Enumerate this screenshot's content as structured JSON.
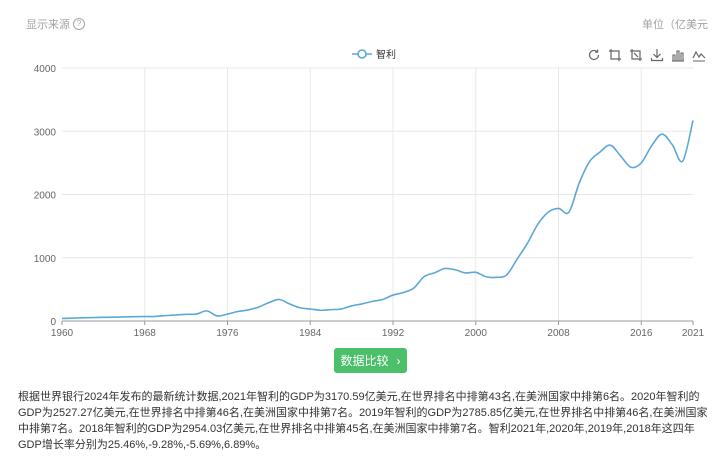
{
  "header": {
    "source_label": "显示来源",
    "help_icon": "question-circle-icon",
    "help_glyph": "?",
    "unit_label": "单位（亿美元"
  },
  "toolbar": {
    "icons": [
      "restore-icon",
      "zoom-icon",
      "zoom-reset-icon",
      "download-icon",
      "bar-chart-icon",
      "line-chart-icon"
    ]
  },
  "compare_button": {
    "label": "数据比较",
    "icon": "chevron-right-icon",
    "glyph": "›"
  },
  "description": {
    "text": "根据世界银行2024年发布的最新统计数据,2021年智利的GDP为3170.59亿美元,在世界排名中排第43名,在美洲国家中排第6名。2020年智利的GDP为2527.27亿美元,在世界排名中排第46名,在美洲国家中排第7名。2019年智利的GDP为2785.85亿美元,在世界排名中排第46名,在美洲国家中排第7名。2018年智利的GDP为2954.03亿美元,在世界排名中排第45名,在美洲国家中排第7名。智利2021年,2020年,2019年,2018年这四年GDP增长率分别为25.46%,-9.28%,-5.69%,6.89%。"
  },
  "chart_data": {
    "type": "line",
    "legend": {
      "position": "top-center",
      "entries": [
        "智利"
      ]
    },
    "series": [
      {
        "name": "智利",
        "color": "#5ba8d8",
        "x": [
          1960,
          1961,
          1962,
          1963,
          1964,
          1965,
          1966,
          1967,
          1968,
          1969,
          1970,
          1971,
          1972,
          1973,
          1974,
          1975,
          1976,
          1977,
          1978,
          1979,
          1980,
          1981,
          1982,
          1983,
          1984,
          1985,
          1986,
          1987,
          1988,
          1989,
          1990,
          1991,
          1992,
          1993,
          1994,
          1995,
          1996,
          1997,
          1998,
          1999,
          2000,
          2001,
          2002,
          2003,
          2004,
          2005,
          2006,
          2007,
          2008,
          2009,
          2010,
          2011,
          2012,
          2013,
          2014,
          2015,
          2016,
          2017,
          2018,
          2019,
          2020,
          2021
        ],
        "values": [
          40,
          45,
          50,
          55,
          58,
          60,
          65,
          68,
          70,
          72,
          85,
          95,
          105,
          110,
          160,
          80,
          110,
          150,
          175,
          220,
          290,
          340,
          270,
          210,
          190,
          170,
          180,
          190,
          240,
          270,
          310,
          340,
          410,
          450,
          520,
          700,
          760,
          830,
          810,
          760,
          770,
          700,
          690,
          730,
          980,
          1230,
          1530,
          1720,
          1780,
          1720,
          2180,
          2520,
          2670,
          2780,
          2610,
          2430,
          2500,
          2770,
          2954.03,
          2785.85,
          2527.27,
          3170.59
        ]
      }
    ],
    "xlim": [
      1960,
      2021
    ],
    "x_ticks": [
      1960,
      1968,
      1976,
      1984,
      1992,
      2000,
      2008,
      2016,
      2021
    ],
    "ylim": [
      0,
      4000
    ],
    "y_ticks": [
      0,
      1000,
      2000,
      3000,
      4000
    ],
    "grid": true
  }
}
